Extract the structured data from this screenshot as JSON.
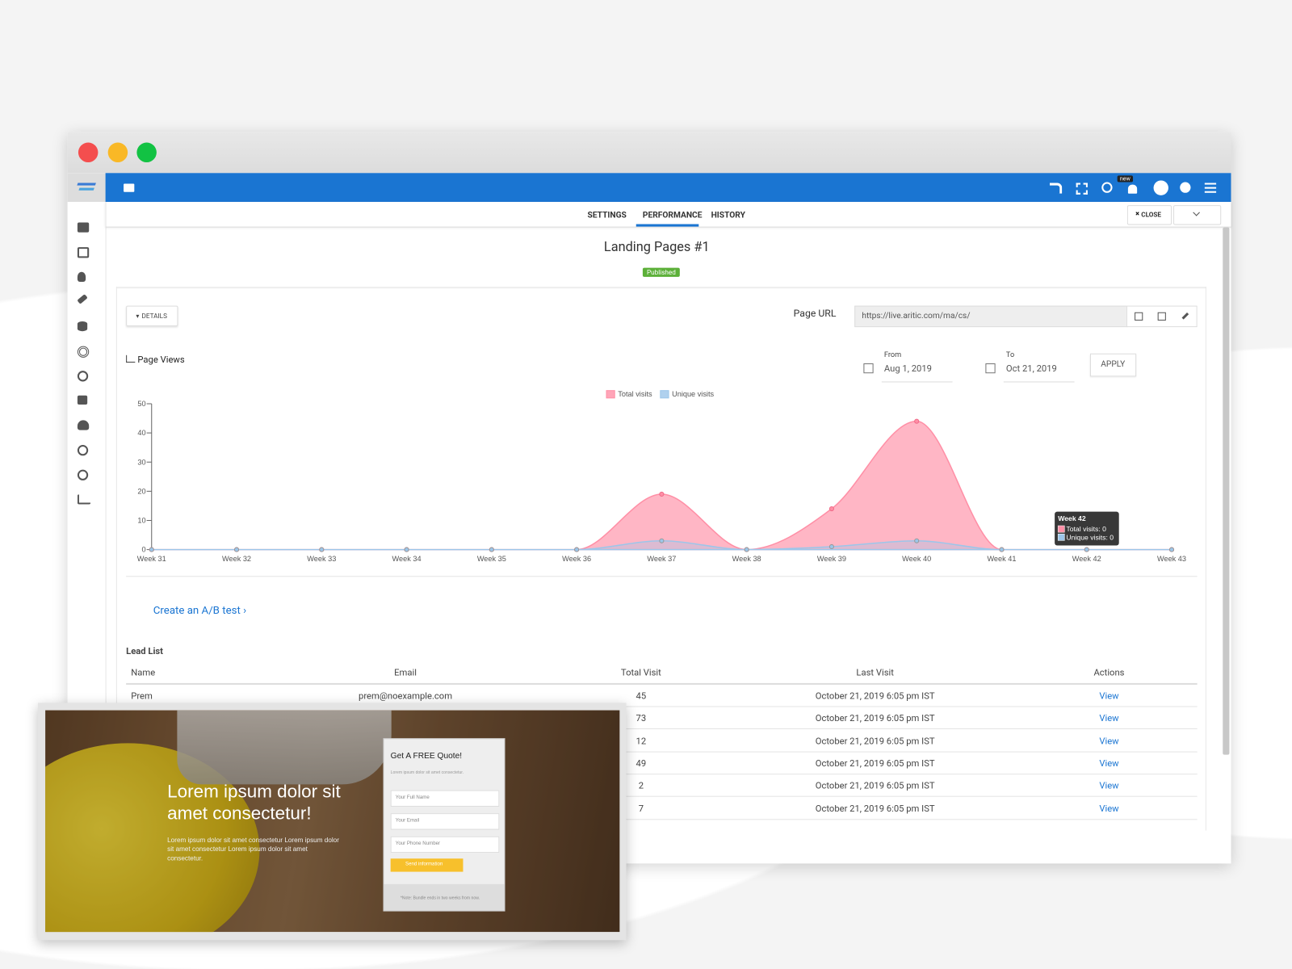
{
  "window": {
    "nav_badge": "new"
  },
  "tabs": [
    "SETTINGS",
    "PERFORMANCE",
    "HISTORY"
  ],
  "close_button": "CLOSE",
  "header": {
    "title": "Landing Pages #1",
    "status": "Published"
  },
  "details_button": "DETAILS",
  "page_url": {
    "label": "Page URL",
    "value": "https://live.aritic.com/ma/cs/"
  },
  "date_range": {
    "from_label": "From",
    "from": "Aug 1, 2019",
    "to_label": "To",
    "to": "Oct 21, 2019",
    "apply": "APPLY"
  },
  "chart_data": {
    "type": "area",
    "title": "Page Views",
    "categories": [
      "Week 31",
      "Week 32",
      "Week 33",
      "Week 34",
      "Week 35",
      "Week 36",
      "Week 37",
      "Week 38",
      "Week 39",
      "Week 40",
      "Week 41",
      "Week 42",
      "Week 43"
    ],
    "series": [
      {
        "name": "Total visits",
        "color": "#ff8fa6",
        "values": [
          0,
          0,
          0,
          0,
          0,
          0,
          19,
          0,
          14,
          44,
          0,
          0,
          0
        ]
      },
      {
        "name": "Unique visits",
        "color": "#9cc6ea",
        "values": [
          0,
          0,
          0,
          0,
          0,
          0,
          3,
          0,
          1,
          3,
          0,
          0,
          0
        ]
      }
    ],
    "ylim": [
      0,
      50
    ],
    "yticks": [
      0,
      10,
      20,
      30,
      40,
      50
    ],
    "tooltip": {
      "title": "Week 42",
      "lines": [
        "Total visits: 0",
        "Unique visits: 0"
      ]
    }
  },
  "ab_test_link": "Create an A/B test",
  "lead_list": {
    "title": "Lead List",
    "columns": [
      "Name",
      "Email",
      "Total Visit",
      "Last Visit",
      "Actions"
    ],
    "rows": [
      {
        "name": "Prem",
        "email": "prem@noexample.com",
        "total_visit": 45,
        "last_visit": "October 21, 2019 6:05 pm IST",
        "action": "View"
      },
      {
        "total_visit": 73,
        "last_visit": "October 21, 2019 6:05 pm IST",
        "action": "View"
      },
      {
        "total_visit": 12,
        "last_visit": "October 21, 2019 6:05 pm IST",
        "action": "View"
      },
      {
        "total_visit": 49,
        "last_visit": "October 21, 2019 6:05 pm IST",
        "action": "View"
      },
      {
        "total_visit": 2,
        "last_visit": "October 21, 2019 6:05 pm IST",
        "action": "View"
      },
      {
        "total_visit": 7,
        "last_visit": "October 21, 2019 6:05 pm IST",
        "action": "View"
      }
    ]
  },
  "preview": {
    "headline": "Lorem ipsum dolor sit amet consectetur!",
    "body": "Lorem ipsum dolor sit amet consectetur Lorem ipsum dolor sit amet consectetur Lorem ipsum dolor sit amet consectetur.",
    "form_title": "Get A FREE Quote!",
    "form_subtitle": "Lorem ipsum dolor sit amet consectetur.",
    "fields": [
      "Your Full Name",
      "Your Email",
      "Your Phone Number"
    ],
    "button": "Send information",
    "note": "*Note: Bundle ends in two weeks from now."
  }
}
